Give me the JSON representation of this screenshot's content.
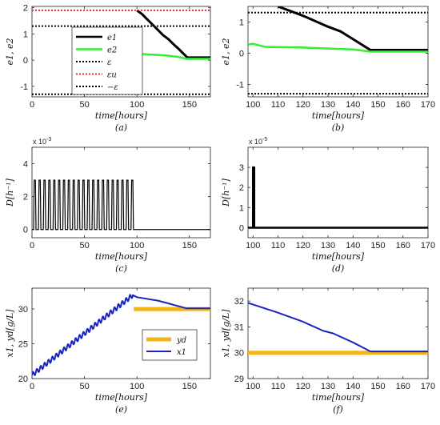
{
  "chart_data": [
    {
      "id": "a",
      "type": "line",
      "caption": "(a)",
      "xlabel": "time[hours]",
      "ylabel": "e1, e2",
      "xlim": [
        0,
        170
      ],
      "ylim": [
        -1.4,
        2.05
      ],
      "xticks": [
        0,
        50,
        100,
        150
      ],
      "yticks": [
        -1,
        0,
        1,
        2
      ],
      "legend": {
        "placement": "center",
        "entries": [
          "e1",
          "e2",
          "ε",
          "εu",
          "−ε"
        ]
      },
      "series": [
        {
          "name": "e1",
          "color": "#000000",
          "width": 3,
          "dash": "",
          "points": [
            [
              100,
              1.9
            ],
            [
              105,
              1.75
            ],
            [
              110,
              1.55
            ],
            [
              115,
              1.35
            ],
            [
              120,
              1.15
            ],
            [
              125,
              0.95
            ],
            [
              130,
              0.8
            ],
            [
              135,
              0.6
            ],
            [
              140,
              0.42
            ],
            [
              145,
              0.22
            ],
            [
              148,
              0.1
            ],
            [
              170,
              0.1
            ]
          ]
        },
        {
          "name": "e2",
          "color": "#33ee33",
          "width": 2.5,
          "dash": "",
          "points": [
            [
              100,
              0.25
            ],
            [
              110,
              0.22
            ],
            [
              120,
              0.2
            ],
            [
              130,
              0.17
            ],
            [
              140,
              0.12
            ],
            [
              147,
              0.05
            ],
            [
              170,
              0.05
            ]
          ]
        },
        {
          "name": "ε",
          "color": "#000000",
          "width": 2,
          "dash": "2,2",
          "points": [
            [
              0,
              1.3
            ],
            [
              170,
              1.3
            ]
          ]
        },
        {
          "name": "εu",
          "color": "#e8302a",
          "width": 2,
          "dash": "2,2",
          "points": [
            [
              0,
              1.9
            ],
            [
              170,
              1.9
            ]
          ]
        },
        {
          "name": "−ε",
          "color": "#000000",
          "width": 2,
          "dash": "2,2",
          "points": [
            [
              0,
              -1.3
            ],
            [
              170,
              -1.3
            ]
          ]
        }
      ]
    },
    {
      "id": "b",
      "type": "line",
      "caption": "(b)",
      "xlabel": "time[hours]",
      "ylabel": "e1, e2",
      "xlim": [
        98,
        170
      ],
      "ylim": [
        -1.4,
        1.5
      ],
      "xticks": [
        100,
        110,
        120,
        130,
        140,
        150,
        160,
        170
      ],
      "yticks": [
        -1,
        0,
        1
      ],
      "series": [
        {
          "name": "e1",
          "color": "#000000",
          "width": 3,
          "dash": "",
          "points": [
            [
              110,
              1.5
            ],
            [
              120,
              1.2
            ],
            [
              130,
              0.85
            ],
            [
              135,
              0.7
            ],
            [
              140,
              0.45
            ],
            [
              147,
              0.1
            ],
            [
              170,
              0.1
            ]
          ]
        },
        {
          "name": "e2",
          "color": "#33ee33",
          "width": 2.5,
          "dash": "",
          "points": [
            [
              98,
              0.28
            ],
            [
              100,
              0.3
            ],
            [
              105,
              0.2
            ],
            [
              120,
              0.18
            ],
            [
              130,
              0.15
            ],
            [
              140,
              0.12
            ],
            [
              147,
              0.05
            ],
            [
              170,
              0.05
            ]
          ]
        },
        {
          "name": "ε",
          "color": "#000000",
          "width": 2,
          "dash": "2,2",
          "points": [
            [
              98,
              1.3
            ],
            [
              170,
              1.3
            ]
          ]
        },
        {
          "name": "−ε",
          "color": "#000000",
          "width": 2,
          "dash": "2,2",
          "points": [
            [
              98,
              -1.3
            ],
            [
              170,
              -1.3
            ]
          ]
        }
      ]
    },
    {
      "id": "c",
      "type": "line",
      "caption": "(c)",
      "xlabel": "time[hours]",
      "ylabel": "D[h⁻¹]",
      "multiplier": "x 10",
      "multiplier_exp": "-3",
      "xlim": [
        0,
        170
      ],
      "ylim": [
        -0.5,
        5
      ],
      "xticks": [
        0,
        50,
        100,
        150
      ],
      "yticks": [
        0,
        2,
        4
      ],
      "pulse": {
        "start": 1.5,
        "end": 99,
        "count": 21,
        "low": 0,
        "high": 3
      },
      "series": [
        {
          "name": "D",
          "color": "#000000",
          "width": 1.3,
          "dash": "",
          "points": [
            [
              99,
              0
            ],
            [
              170,
              0
            ]
          ]
        }
      ]
    },
    {
      "id": "d",
      "type": "line",
      "caption": "(d)",
      "xlabel": "time[hours]",
      "ylabel": "D[h⁻¹]",
      "multiplier": "x 10",
      "multiplier_exp": "-5",
      "xlim": [
        98,
        170
      ],
      "ylim": [
        -0.5,
        4
      ],
      "xticks": [
        100,
        110,
        120,
        130,
        140,
        150,
        160,
        170
      ],
      "yticks": [
        0,
        1,
        2,
        3
      ],
      "series": [
        {
          "name": "D",
          "color": "#000000",
          "width": 2.5,
          "dash": "",
          "points": [
            [
              98,
              0
            ],
            [
              100,
              0
            ],
            [
              100,
              3
            ],
            [
              100.5,
              3
            ],
            [
              100.5,
              0
            ],
            [
              170,
              0
            ]
          ]
        }
      ]
    },
    {
      "id": "e",
      "type": "line",
      "caption": "(e)",
      "xlabel": "time[hours]",
      "ylabel": "x1, yd[g/L]",
      "xlim": [
        0,
        170
      ],
      "ylim": [
        20,
        33
      ],
      "xticks": [
        0,
        50,
        100,
        150
      ],
      "yticks": [
        20,
        25,
        30
      ],
      "legend": {
        "placement": "center-right",
        "entries": [
          "yd",
          "x1"
        ]
      },
      "series": [
        {
          "name": "yd",
          "color": "#f2b418",
          "width": 5,
          "dash": "",
          "points": [
            [
              97,
              30
            ],
            [
              170,
              30
            ]
          ]
        },
        {
          "name": "x1",
          "color": "#1a24c0",
          "width": 2,
          "dash": "",
          "wavy": {
            "until": 96,
            "step": 3.7,
            "amp": 0.35
          },
          "points": [
            [
              0,
              20.5
            ],
            [
              96,
              32
            ],
            [
              100,
              31.7
            ],
            [
              120,
              31.2
            ],
            [
              130,
              30.8
            ],
            [
              147,
              30.1
            ],
            [
              170,
              30.1
            ]
          ]
        }
      ]
    },
    {
      "id": "f",
      "type": "line",
      "caption": "(f)",
      "xlabel": "time[hours]",
      "ylabel": "x1, yd[g/L]",
      "xlim": [
        98,
        170
      ],
      "ylim": [
        29,
        32.5
      ],
      "xticks": [
        100,
        110,
        120,
        130,
        140,
        150,
        160,
        170
      ],
      "yticks": [
        29,
        30,
        31,
        32
      ],
      "series": [
        {
          "name": "yd",
          "color": "#f2b418",
          "width": 5,
          "dash": "",
          "points": [
            [
              98,
              30
            ],
            [
              170,
              30
            ]
          ]
        },
        {
          "name": "x1",
          "color": "#1a24c0",
          "width": 2,
          "dash": "",
          "points": [
            [
              98,
              31.93
            ],
            [
              110,
              31.55
            ],
            [
              120,
              31.2
            ],
            [
              128,
              30.85
            ],
            [
              132,
              30.75
            ],
            [
              140,
              30.4
            ],
            [
              147,
              30.05
            ],
            [
              170,
              30.05
            ]
          ]
        }
      ]
    }
  ]
}
